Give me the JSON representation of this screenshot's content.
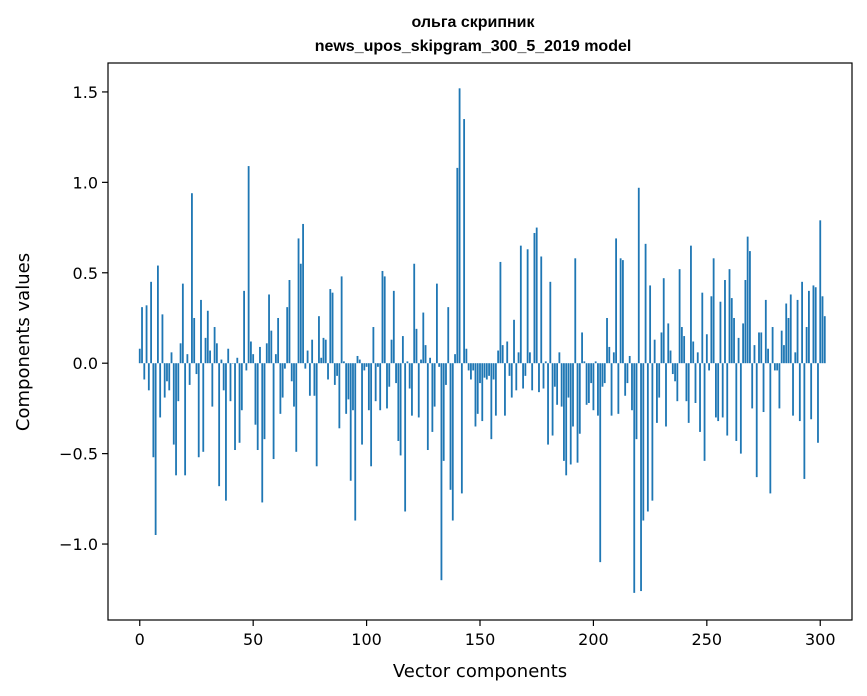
{
  "chart_data": {
    "type": "bar",
    "title_line1": "ольга скрипник",
    "title_line2": "news_upos_skipgram_300_5_2019 model",
    "xlabel": "Vector components",
    "ylabel": "Components values",
    "xlim": [
      -14,
      314
    ],
    "ylim": [
      -1.42,
      1.66
    ],
    "xticks": [
      0,
      50,
      100,
      150,
      200,
      250,
      300
    ],
    "yticks": [
      -1.0,
      -0.5,
      0.0,
      0.5,
      1.0,
      1.5
    ],
    "ytick_labels": [
      "−1.0",
      "−0.5",
      "0.0",
      "0.5",
      "1.0",
      "1.5"
    ],
    "bar_color": "#1f77b4",
    "grid": false,
    "values": [
      0.08,
      0.31,
      -0.09,
      0.32,
      -0.15,
      0.45,
      -0.52,
      -0.95,
      0.54,
      -0.3,
      0.27,
      -0.19,
      -0.1,
      -0.15,
      0.06,
      -0.45,
      -0.62,
      -0.21,
      0.11,
      0.44,
      -0.62,
      0.05,
      -0.12,
      0.94,
      0.25,
      -0.06,
      -0.52,
      0.35,
      -0.49,
      0.14,
      0.29,
      0.07,
      -0.24,
      0.2,
      0.11,
      -0.68,
      0.02,
      -0.15,
      -0.76,
      0.08,
      -0.21,
      0.0,
      -0.48,
      0.03,
      -0.44,
      -0.26,
      0.4,
      -0.04,
      1.09,
      0.12,
      0.05,
      -0.34,
      -0.48,
      0.09,
      -0.77,
      -0.42,
      0.11,
      0.38,
      0.18,
      -0.53,
      0.05,
      0.25,
      -0.28,
      -0.19,
      -0.03,
      0.31,
      0.46,
      -0.1,
      -0.24,
      -0.49,
      0.69,
      0.55,
      0.77,
      -0.03,
      0.07,
      -0.18,
      0.13,
      -0.18,
      -0.57,
      0.26,
      0.03,
      0.14,
      0.13,
      -0.09,
      0.41,
      0.39,
      -0.12,
      -0.07,
      -0.36,
      0.48,
      0.01,
      -0.28,
      -0.2,
      -0.65,
      -0.26,
      -0.87,
      0.04,
      0.02,
      -0.45,
      -0.04,
      -0.02,
      -0.26,
      -0.57,
      0.2,
      -0.21,
      -0.02,
      -0.26,
      0.51,
      0.48,
      -0.25,
      -0.13,
      0.13,
      0.4,
      -0.11,
      -0.43,
      -0.51,
      0.15,
      -0.82,
      0.01,
      -0.14,
      -0.29,
      0.55,
      0.19,
      -0.3,
      0.02,
      0.28,
      0.1,
      -0.48,
      0.03,
      -0.38,
      -0.24,
      0.44,
      -0.02,
      -1.2,
      -0.54,
      -0.12,
      0.31,
      -0.7,
      -0.87,
      0.05,
      1.08,
      1.52,
      -0.72,
      1.35,
      0.08,
      -0.04,
      -0.09,
      -0.04,
      -0.35,
      -0.28,
      -0.11,
      -0.32,
      -0.08,
      -0.09,
      -0.07,
      -0.42,
      -0.09,
      -0.29,
      0.07,
      0.56,
      0.1,
      -0.29,
      0.12,
      -0.07,
      -0.19,
      0.24,
      -0.15,
      0.06,
      0.65,
      -0.14,
      -0.07,
      0.63,
      0.06,
      -0.15,
      0.72,
      0.75,
      -0.16,
      0.59,
      -0.14,
      0.01,
      -0.45,
      0.45,
      -0.4,
      -0.13,
      -0.23,
      0.06,
      -0.24,
      -0.54,
      -0.62,
      -0.19,
      -0.56,
      -0.35,
      0.58,
      -0.55,
      -0.39,
      0.17,
      0.01,
      -0.23,
      -0.22,
      -0.11,
      -0.26,
      0.01,
      -0.29,
      -1.1,
      -0.13,
      -0.11,
      0.25,
      0.09,
      -0.29,
      0.06,
      0.69,
      -0.28,
      0.58,
      0.57,
      -0.18,
      -0.11,
      0.04,
      -0.26,
      -1.27,
      -0.42,
      0.97,
      -1.26,
      -0.87,
      0.66,
      -0.82,
      0.43,
      -0.76,
      0.13,
      -0.33,
      -0.19,
      0.17,
      0.47,
      -0.35,
      0.22,
      0.07,
      -0.06,
      -0.1,
      -0.21,
      0.52,
      0.2,
      0.15,
      -0.21,
      -0.33,
      0.65,
      0.12,
      -0.22,
      0.06,
      -0.38,
      0.39,
      -0.54,
      0.16,
      -0.04,
      0.37,
      0.58,
      -0.3,
      -0.32,
      0.34,
      -0.3,
      0.46,
      -0.4,
      0.52,
      0.36,
      0.25,
      -0.43,
      0.14,
      -0.5,
      0.22,
      0.46,
      0.7,
      0.62,
      -0.25,
      0.1,
      -0.63,
      0.17,
      0.17,
      -0.27,
      0.35,
      0.08,
      -0.72,
      0.2,
      -0.04,
      -0.04,
      -0.25,
      0.18,
      0.1,
      0.33,
      0.25,
      0.38,
      -0.29,
      0.06,
      0.35,
      -0.32,
      0.45,
      -0.64,
      0.2,
      0.4,
      -0.31,
      0.43,
      0.42,
      -0.44,
      0.79,
      0.37,
      0.26
    ]
  }
}
